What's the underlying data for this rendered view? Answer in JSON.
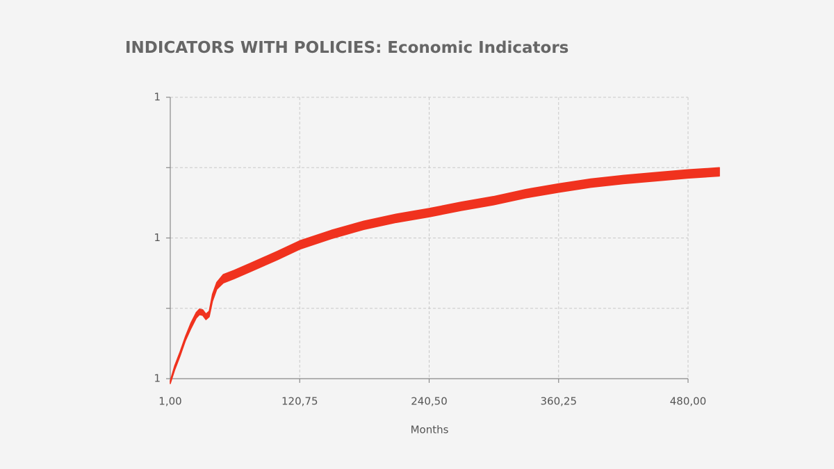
{
  "chart_data": {
    "type": "area",
    "title": "INDICATORS WITH POLICIES: Economic Indicators",
    "x_label": "Months",
    "color": "#f0321e",
    "x": [
      1,
      5,
      10,
      15,
      20,
      25,
      28,
      31,
      34,
      37,
      40,
      44,
      50,
      60,
      75,
      100,
      120.75,
      150,
      180,
      210,
      240.5,
      270,
      300,
      330,
      360.25,
      390,
      420,
      450,
      480,
      509
    ],
    "low": [
      0.893,
      0.912,
      0.932,
      0.954,
      0.971,
      0.986,
      0.991,
      0.99,
      0.984,
      0.988,
      1.01,
      1.027,
      1.036,
      1.042,
      1.052,
      1.069,
      1.084,
      1.099,
      1.112,
      1.122,
      1.13,
      1.139,
      1.147,
      1.157,
      1.165,
      1.172,
      1.177,
      1.181,
      1.185,
      1.188
    ],
    "high": [
      0.897,
      0.918,
      0.938,
      0.96,
      0.979,
      0.994,
      0.999,
      0.998,
      0.992,
      0.996,
      1.02,
      1.037,
      1.048,
      1.054,
      1.064,
      1.081,
      1.096,
      1.111,
      1.124,
      1.134,
      1.142,
      1.151,
      1.159,
      1.169,
      1.177,
      1.184,
      1.189,
      1.193,
      1.197,
      1.2
    ],
    "xlim": [
      1,
      480
    ],
    "xticks": [
      {
        "value": 1,
        "label": "1,00"
      },
      {
        "value": 120.75,
        "label": "120,75"
      },
      {
        "value": 240.5,
        "label": "240,50"
      },
      {
        "value": 360.25,
        "label": "360,25"
      },
      {
        "value": 480,
        "label": "480,00"
      }
    ],
    "ylim": [
      0.9,
      1.3
    ],
    "yticks": [
      {
        "value": 0.9,
        "label": "1"
      },
      {
        "value": 1.1,
        "label": "1"
      },
      {
        "value": 1.3,
        "label": "1"
      }
    ],
    "yminor": [
      1.0,
      1.2
    ],
    "grid": true
  }
}
